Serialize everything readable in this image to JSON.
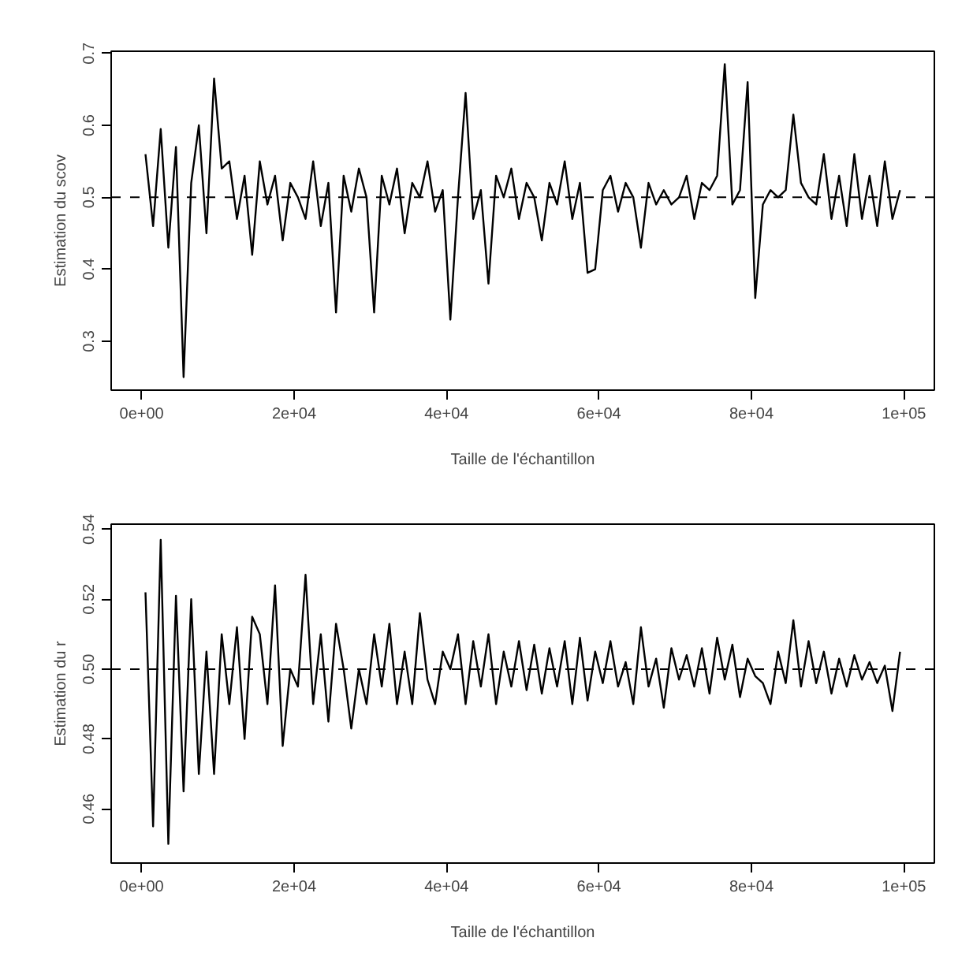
{
  "chart_data": [
    {
      "type": "line",
      "xlabel": "Taille de l'échantillon",
      "ylabel": "Estimation du scov",
      "xlim": [
        -4000,
        104000
      ],
      "ylim": [
        0.232,
        0.703
      ],
      "xticks": [
        {
          "value": 0,
          "label": "0e+00"
        },
        {
          "value": 20000,
          "label": "2e+04"
        },
        {
          "value": 40000,
          "label": "4e+04"
        },
        {
          "value": 60000,
          "label": "6e+04"
        },
        {
          "value": 80000,
          "label": "8e+04"
        },
        {
          "value": 100000,
          "label": "1e+05"
        }
      ],
      "yticks": [
        0.3,
        0.4,
        0.5,
        0.6,
        0.7
      ],
      "grid": false,
      "line_style": "solid",
      "marker": "none",
      "ref_lines": [
        {
          "axis": "y",
          "value": 0.5,
          "label": null,
          "color": "#000000",
          "line_style": "dashed"
        }
      ],
      "x": [
        500,
        1500,
        2500,
        3500,
        4500,
        5500,
        6500,
        7500,
        8500,
        9500,
        10500,
        11500,
        12500,
        13500,
        14500,
        15500,
        16500,
        17500,
        18500,
        19500,
        20500,
        21500,
        22500,
        23500,
        24500,
        25500,
        26500,
        27500,
        28500,
        29500,
        30500,
        31500,
        32500,
        33500,
        34500,
        35500,
        36500,
        37500,
        38500,
        39500,
        40500,
        41500,
        42500,
        43500,
        44500,
        45500,
        46500,
        47500,
        48500,
        49500,
        50500,
        51500,
        52500,
        53500,
        54500,
        55500,
        56500,
        57500,
        58500,
        59500,
        60500,
        61500,
        62500,
        63500,
        64500,
        65500,
        66500,
        67500,
        68500,
        69500,
        70500,
        71500,
        72500,
        73500,
        74500,
        75500,
        76500,
        77500,
        78500,
        79500,
        80500,
        81500,
        82500,
        83500,
        84500,
        85500,
        86500,
        87500,
        88500,
        89500,
        90500,
        91500,
        92500,
        93500,
        94500,
        95500,
        96500,
        97500,
        98500,
        99500
      ],
      "series": [
        {
          "color": "#000000",
          "values": [
            0.56,
            0.46,
            0.595,
            0.43,
            0.57,
            0.25,
            0.52,
            0.6,
            0.45,
            0.665,
            0.54,
            0.55,
            0.47,
            0.53,
            0.42,
            0.55,
            0.49,
            0.53,
            0.44,
            0.52,
            0.5,
            0.47,
            0.55,
            0.46,
            0.52,
            0.34,
            0.53,
            0.48,
            0.54,
            0.5,
            0.34,
            0.53,
            0.49,
            0.54,
            0.45,
            0.52,
            0.5,
            0.55,
            0.48,
            0.51,
            0.33,
            0.5,
            0.645,
            0.47,
            0.51,
            0.38,
            0.53,
            0.5,
            0.54,
            0.47,
            0.52,
            0.5,
            0.44,
            0.52,
            0.49,
            0.55,
            0.47,
            0.52,
            0.395,
            0.4,
            0.51,
            0.53,
            0.48,
            0.52,
            0.5,
            0.43,
            0.52,
            0.49,
            0.51,
            0.49,
            0.5,
            0.53,
            0.47,
            0.52,
            0.51,
            0.53,
            0.685,
            0.49,
            0.51,
            0.66,
            0.36,
            0.49,
            0.51,
            0.5,
            0.51,
            0.615,
            0.52,
            0.5,
            0.49,
            0.56,
            0.47,
            0.53,
            0.46,
            0.56,
            0.47,
            0.53,
            0.46,
            0.55,
            0.47,
            0.51
          ]
        }
      ]
    },
    {
      "type": "line",
      "xlabel": "Taille de l'échantillon",
      "ylabel": "Estimation du r",
      "xlim": [
        -4000,
        104000
      ],
      "ylim": [
        0.4445,
        0.5415
      ],
      "xticks": [
        {
          "value": 0,
          "label": "0e+00"
        },
        {
          "value": 20000,
          "label": "2e+04"
        },
        {
          "value": 40000,
          "label": "4e+04"
        },
        {
          "value": 60000,
          "label": "6e+04"
        },
        {
          "value": 80000,
          "label": "8e+04"
        },
        {
          "value": 100000,
          "label": "1e+05"
        }
      ],
      "yticks": [
        {
          "value": 0.46,
          "label": "0.46"
        },
        {
          "value": 0.48,
          "label": "0.48"
        },
        {
          "value": 0.5,
          "label": "0.50"
        },
        {
          "value": 0.52,
          "label": "0.52"
        },
        {
          "value": 0.54,
          "label": "0.54"
        }
      ],
      "grid": false,
      "line_style": "solid",
      "marker": "none",
      "ref_lines": [
        {
          "axis": "y",
          "value": 0.5,
          "label": null,
          "color": "#000000",
          "line_style": "dashed"
        }
      ],
      "x": [
        500,
        1500,
        2500,
        3500,
        4500,
        5500,
        6500,
        7500,
        8500,
        9500,
        10500,
        11500,
        12500,
        13500,
        14500,
        15500,
        16500,
        17500,
        18500,
        19500,
        20500,
        21500,
        22500,
        23500,
        24500,
        25500,
        26500,
        27500,
        28500,
        29500,
        30500,
        31500,
        32500,
        33500,
        34500,
        35500,
        36500,
        37500,
        38500,
        39500,
        40500,
        41500,
        42500,
        43500,
        44500,
        45500,
        46500,
        47500,
        48500,
        49500,
        50500,
        51500,
        52500,
        53500,
        54500,
        55500,
        56500,
        57500,
        58500,
        59500,
        60500,
        61500,
        62500,
        63500,
        64500,
        65500,
        66500,
        67500,
        68500,
        69500,
        70500,
        71500,
        72500,
        73500,
        74500,
        75500,
        76500,
        77500,
        78500,
        79500,
        80500,
        81500,
        82500,
        83500,
        84500,
        85500,
        86500,
        87500,
        88500,
        89500,
        90500,
        91500,
        92500,
        93500,
        94500,
        95500,
        96500,
        97500,
        98500,
        99500
      ],
      "series": [
        {
          "color": "#000000",
          "values": [
            0.522,
            0.455,
            0.537,
            0.45,
            0.521,
            0.465,
            0.52,
            0.47,
            0.505,
            0.47,
            0.51,
            0.49,
            0.512,
            0.48,
            0.515,
            0.51,
            0.49,
            0.524,
            0.478,
            0.5,
            0.495,
            0.527,
            0.49,
            0.51,
            0.485,
            0.513,
            0.5,
            0.483,
            0.5,
            0.49,
            0.51,
            0.495,
            0.513,
            0.49,
            0.505,
            0.49,
            0.516,
            0.497,
            0.49,
            0.505,
            0.5,
            0.51,
            0.49,
            0.508,
            0.495,
            0.51,
            0.49,
            0.505,
            0.495,
            0.508,
            0.494,
            0.507,
            0.493,
            0.506,
            0.495,
            0.508,
            0.49,
            0.509,
            0.491,
            0.505,
            0.496,
            0.508,
            0.495,
            0.502,
            0.49,
            0.512,
            0.495,
            0.503,
            0.489,
            0.506,
            0.497,
            0.504,
            0.495,
            0.506,
            0.493,
            0.509,
            0.497,
            0.507,
            0.492,
            0.503,
            0.498,
            0.496,
            0.49,
            0.505,
            0.496,
            0.514,
            0.495,
            0.508,
            0.496,
            0.505,
            0.493,
            0.503,
            0.495,
            0.504,
            0.497,
            0.502,
            0.496,
            0.501,
            0.488,
            0.505
          ]
        }
      ]
    }
  ]
}
